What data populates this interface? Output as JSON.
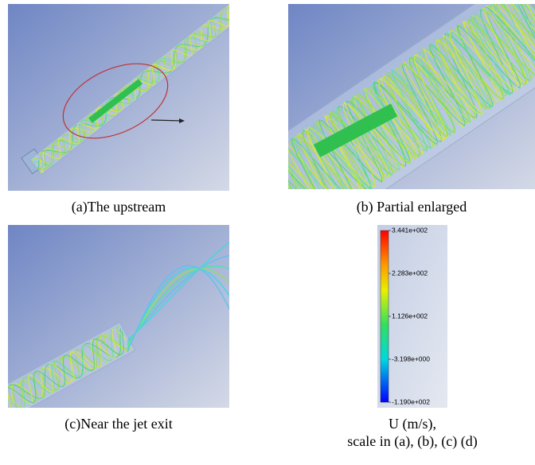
{
  "panels": [
    {
      "caption": "(a)The upstream"
    },
    {
      "caption": "(b) Partial enlarged"
    },
    {
      "caption": "(c)Near the jet exit"
    }
  ],
  "legend": {
    "labels": [
      "3.441e+002",
      "2.283e+002",
      "1.126e+002",
      "-3.198e+000",
      "-1.190e+002"
    ],
    "caption_lines": [
      "U (m/s),",
      "scale in (a), (b), (c) (d)"
    ]
  }
}
